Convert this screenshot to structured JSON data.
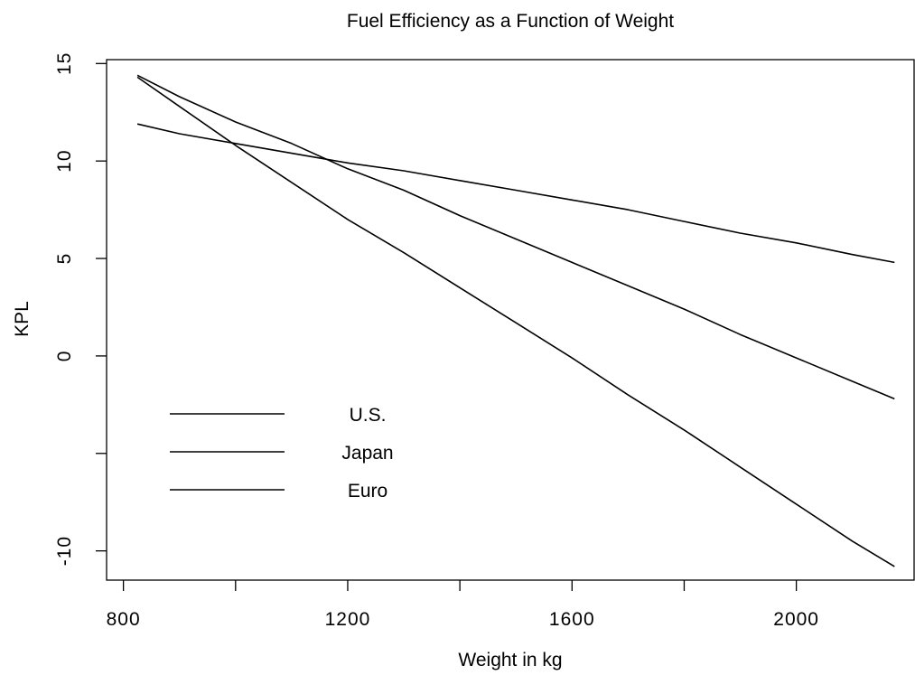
{
  "chart_data": {
    "type": "line",
    "title": "Fuel Efficiency as a Function of Weight",
    "xlabel": "Weight in kg",
    "ylabel": "KPL",
    "xlim": [
      770,
      2210
    ],
    "ylim": [
      -11.5,
      15.2
    ],
    "x_ticks": [
      800,
      1200,
      1600,
      2000
    ],
    "x_minor_ticks": [
      1000,
      1400,
      1800
    ],
    "y_ticks": [
      15,
      10,
      5,
      0,
      -10
    ],
    "y_minor_ticks": [
      -5
    ],
    "legend": {
      "placement": "lower-left",
      "entries": [
        "U.S.",
        "Japan",
        "Euro"
      ]
    },
    "series": [
      {
        "name": "U.S.",
        "x": [
          825,
          900,
          1000,
          1100,
          1200,
          1300,
          1400,
          1500,
          1600,
          1700,
          1800,
          1900,
          2000,
          2100,
          2175
        ],
        "y": [
          11.9,
          11.4,
          10.9,
          10.4,
          9.9,
          9.5,
          9.0,
          8.5,
          8.0,
          7.5,
          6.9,
          6.3,
          5.8,
          5.2,
          4.8
        ]
      },
      {
        "name": "Japan",
        "x": [
          825,
          900,
          1000,
          1100,
          1200,
          1300,
          1400,
          1500,
          1600,
          1700,
          1800,
          1900,
          2000,
          2100,
          2175
        ],
        "y": [
          14.4,
          13.3,
          12.0,
          10.9,
          9.6,
          8.5,
          7.2,
          6.0,
          4.8,
          3.6,
          2.4,
          1.1,
          -0.1,
          -1.3,
          -2.2
        ]
      },
      {
        "name": "Euro",
        "x": [
          825,
          900,
          1000,
          1100,
          1200,
          1300,
          1400,
          1500,
          1600,
          1700,
          1800,
          1900,
          2000,
          2100,
          2175
        ],
        "y": [
          14.3,
          12.8,
          10.8,
          8.9,
          7.0,
          5.3,
          3.5,
          1.7,
          -0.1,
          -2.0,
          -3.8,
          -5.7,
          -7.6,
          -9.5,
          -10.8
        ]
      }
    ],
    "grid": false
  }
}
